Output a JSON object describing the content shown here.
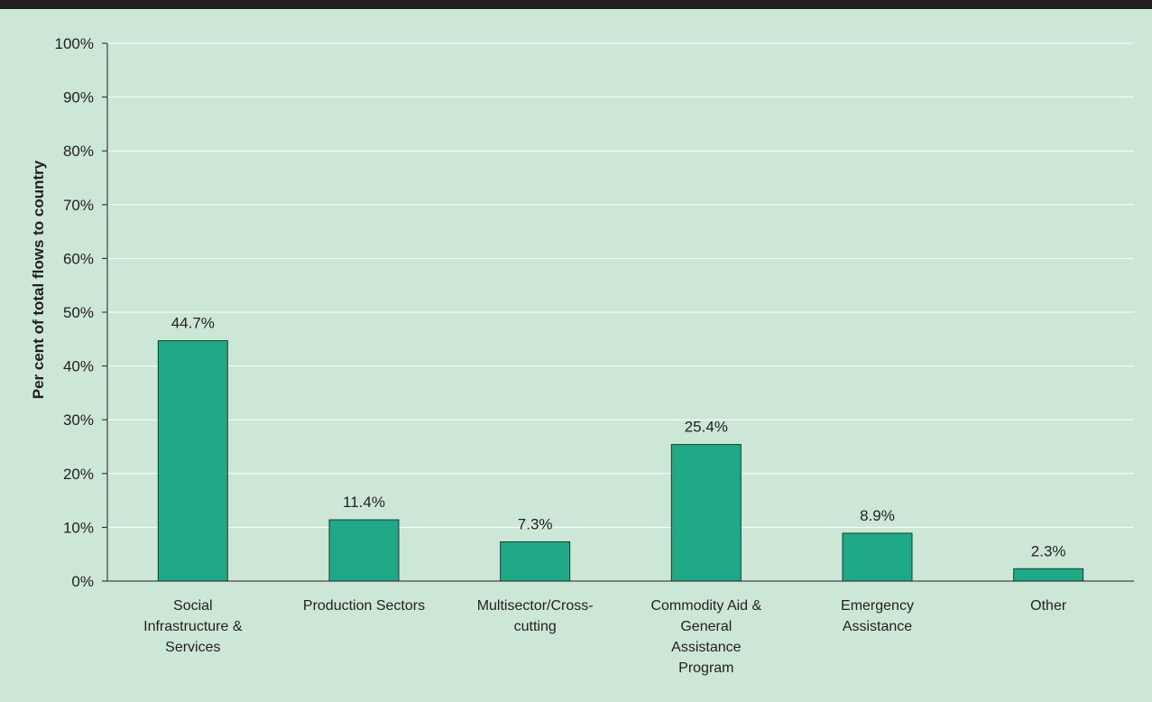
{
  "chart_data": {
    "type": "bar",
    "title": "",
    "xlabel": "",
    "ylabel": "Per cent of total flows to country",
    "ylim": [
      0,
      100
    ],
    "yticks": [
      "0%",
      "10%",
      "20%",
      "30%",
      "40%",
      "50%",
      "60%",
      "70%",
      "80%",
      "90%",
      "100%"
    ],
    "categories": [
      [
        "Social",
        "Infrastructure &",
        "Services"
      ],
      [
        "Production Sectors"
      ],
      [
        "Multisector/Cross-",
        "cutting"
      ],
      [
        "Commodity Aid &",
        "General",
        "Assistance",
        "Program"
      ],
      [
        "Emergency",
        "Assistance"
      ],
      [
        "Other"
      ]
    ],
    "values": [
      44.7,
      11.4,
      7.3,
      25.4,
      8.9,
      2.3
    ],
    "data_labels": [
      "44.7%",
      "11.4%",
      "7.3%",
      "25.4%",
      "8.9%",
      "2.3%"
    ],
    "grid": true,
    "colors": {
      "background": "#cce7d6",
      "bar_fill": "#1fa987",
      "bar_stroke": "#1a3a30",
      "gridline": "#ffffff",
      "axis": "#231f20",
      "top_bar": "#231f20"
    }
  }
}
